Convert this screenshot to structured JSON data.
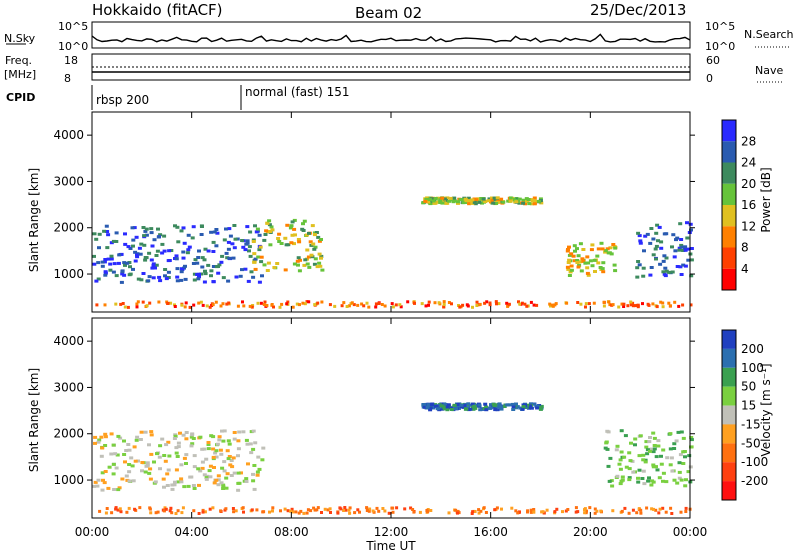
{
  "header": {
    "station": "Hokkaido (fitACF)",
    "beam": "Beam 02",
    "date": "25/Dec/2013"
  },
  "top_panels": {
    "nsky_label": "N.Sky",
    "nsky_ticks": [
      "10^5",
      "10^0"
    ],
    "nsearch_label": "N.Search",
    "freq_label": "Freq.",
    "freq_unit": "[MHz]",
    "freq_ticks": [
      "18",
      "8"
    ],
    "nave_label": "Nave",
    "nave_ticks": [
      "60",
      "0"
    ],
    "cpid_label": "CPID",
    "cpid_segments": [
      {
        "label": "rbsp 200",
        "start_hour": 0
      },
      {
        "label": "normal (fast) 151",
        "start_hour": 6
      }
    ]
  },
  "chart_data": [
    {
      "type": "heatmap",
      "name": "power",
      "ylabel": "Slant Range [km]",
      "xlabel": "",
      "ylim": [
        180,
        4500
      ],
      "yticks": [
        1000,
        2000,
        3000,
        4000
      ],
      "xlim_hours": [
        0,
        24
      ],
      "colorbar": {
        "label": "Power [dB]",
        "ticks": [
          "4",
          "8",
          "12",
          "16",
          "20",
          "24",
          "28"
        ],
        "colors": [
          "#2a2aff",
          "#2a5bb0",
          "#3d8a5e",
          "#66c33a",
          "#e0c020",
          "#ff8000",
          "#ff4000",
          "#ff0000"
        ]
      },
      "features": [
        {
          "label": "dense echoes 00-07 UT",
          "t": [
            0,
            6.8
          ],
          "range": [
            850,
            2100
          ],
          "level": 26
        },
        {
          "label": "sloped band 06-09 UT",
          "t": [
            6.4,
            9.2
          ],
          "range": [
            1100,
            2200
          ],
          "level": 16
        },
        {
          "label": "band 13-18 UT",
          "t": [
            13.2,
            18
          ],
          "range": [
            2550,
            2680
          ],
          "level": 16
        },
        {
          "label": "echoes 19-21 UT",
          "t": [
            19,
            21
          ],
          "range": [
            1000,
            1700
          ],
          "level": 14
        },
        {
          "label": "dense echoes 21.5-24 UT",
          "t": [
            21.8,
            24
          ],
          "range": [
            950,
            2150
          ],
          "level": 26
        }
      ]
    },
    {
      "type": "heatmap",
      "name": "velocity",
      "ylabel": "Slant Range [km]",
      "xlabel": "Time UT",
      "ylim": [
        180,
        4500
      ],
      "yticks": [
        1000,
        2000,
        3000,
        4000
      ],
      "xticks": [
        "00:00",
        "04:00",
        "08:00",
        "12:00",
        "16:00",
        "20:00",
        "00:00"
      ],
      "xlim_hours": [
        0,
        24
      ],
      "colorbar": {
        "label": "Velocity [m s⁻¹]",
        "ticks": [
          "200",
          "100",
          "50",
          "15",
          "-15",
          "-50",
          "-100",
          "-200"
        ],
        "colors": [
          "#2040c0",
          "#2b6fb0",
          "#3aa050",
          "#7ad040",
          "#c0c0b8",
          "#ffa020",
          "#ff7010",
          "#ff4010",
          "#ff1010"
        ]
      },
      "features": [
        {
          "label": "ground scatter 00-07 UT",
          "t": [
            0,
            6.8
          ],
          "range": [
            800,
            2100
          ],
          "velocity": 0
        },
        {
          "label": "band 13-18 UT",
          "t": [
            13.2,
            18
          ],
          "range": [
            2550,
            2680
          ],
          "velocity": 120
        },
        {
          "label": "lower echoes 20-24 UT",
          "t": [
            20.5,
            24
          ],
          "range": [
            900,
            2100
          ],
          "velocity": 30
        }
      ]
    }
  ]
}
